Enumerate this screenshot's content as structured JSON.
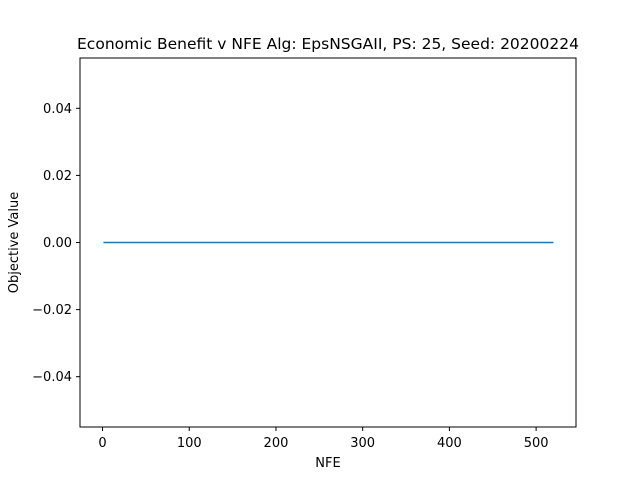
{
  "chart_data": {
    "type": "line",
    "title": "Economic Benefit v NFE Alg: EpsNSGAII, PS: 25, Seed: 20200224",
    "xlabel": "NFE",
    "ylabel": "Objective Value",
    "xlim": [
      -26,
      546
    ],
    "ylim": [
      -0.055,
      0.055
    ],
    "xticks": [
      0,
      100,
      200,
      300,
      400,
      500
    ],
    "xtick_labels": [
      "0",
      "100",
      "200",
      "300",
      "400",
      "500"
    ],
    "yticks": [
      -0.04,
      -0.02,
      0.0,
      0.02,
      0.04
    ],
    "ytick_labels": [
      "−0.04",
      "−0.02",
      "0.00",
      "0.02",
      "0.04"
    ],
    "grid": false,
    "series": [
      {
        "color": "#1f77b4",
        "x": [
          1,
          520
        ],
        "y": [
          0.0,
          0.0
        ]
      }
    ]
  }
}
